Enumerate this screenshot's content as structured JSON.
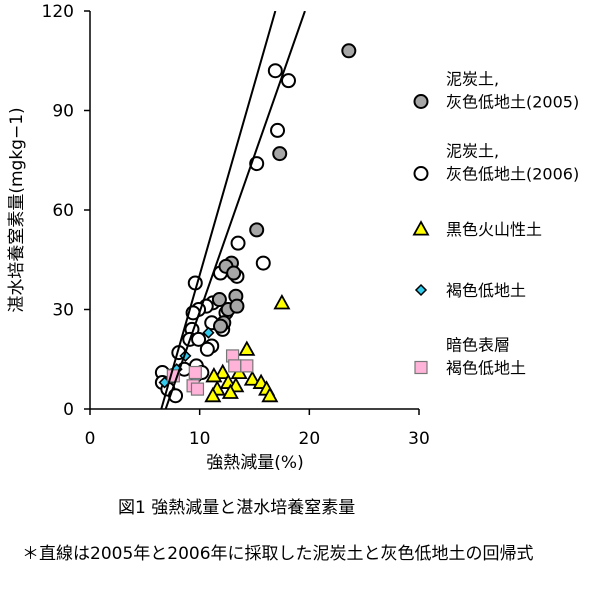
{
  "chart_data": {
    "type": "scatter",
    "xlabel": "強熱減量(%)",
    "ylabel": "湛水培養窒素量(mgkg−1)",
    "xlim": [
      0,
      30
    ],
    "ylim": [
      0,
      120
    ],
    "xticks": [
      "0",
      "10",
      "20",
      "30"
    ],
    "yticks": [
      "0",
      "30",
      "60",
      "90",
      "120"
    ],
    "legend_position": "right",
    "series": [
      {
        "name": "泥炭土,\n灰色低地土(2005)",
        "marker": "circle",
        "fill": "#a6a6a6",
        "points": [
          [
            23.6,
            108
          ],
          [
            17.3,
            77
          ],
          [
            15.2,
            54
          ],
          [
            12.9,
            44
          ],
          [
            12.4,
            43
          ],
          [
            13.1,
            41
          ],
          [
            11.8,
            33
          ],
          [
            13.3,
            34
          ],
          [
            12.6,
            30
          ],
          [
            13.4,
            31
          ],
          [
            12.2,
            26
          ],
          [
            11.9,
            25
          ]
        ]
      },
      {
        "name": "泥炭土,\n灰色低地土(2006)",
        "marker": "circle",
        "fill": "#ffffff",
        "points": [
          [
            16.9,
            102
          ],
          [
            18.1,
            99
          ],
          [
            17.1,
            84
          ],
          [
            15.2,
            74
          ],
          [
            13.5,
            50
          ],
          [
            15.8,
            44
          ],
          [
            11.9,
            41
          ],
          [
            13.4,
            40
          ],
          [
            9.6,
            38
          ],
          [
            11.2,
            32
          ],
          [
            10.6,
            31
          ],
          [
            9.9,
            30
          ],
          [
            9.4,
            29
          ],
          [
            12.4,
            29
          ],
          [
            11.1,
            26
          ],
          [
            9.3,
            24
          ],
          [
            12.1,
            24
          ],
          [
            9.1,
            21
          ],
          [
            9.9,
            21
          ],
          [
            11.1,
            19
          ],
          [
            10.7,
            18
          ],
          [
            8.1,
            17
          ],
          [
            9.7,
            13
          ],
          [
            8.6,
            12
          ],
          [
            10.2,
            11
          ],
          [
            7.5,
            10
          ],
          [
            6.6,
            11
          ],
          [
            6.6,
            8
          ],
          [
            7.1,
            6
          ],
          [
            7.8,
            4
          ]
        ]
      },
      {
        "name": "黒色火山性土",
        "marker": "triangle",
        "fill": "#ffff00",
        "points": [
          [
            17.5,
            32
          ],
          [
            14.3,
            18
          ],
          [
            12.1,
            11
          ],
          [
            13.6,
            11
          ],
          [
            11.3,
            10
          ],
          [
            14.8,
            9
          ],
          [
            12.6,
            8
          ],
          [
            13.3,
            7
          ],
          [
            11.6,
            6
          ],
          [
            15.6,
            8
          ],
          [
            16.1,
            6
          ],
          [
            12.8,
            5
          ],
          [
            11.2,
            4
          ],
          [
            16.4,
            4
          ]
        ]
      },
      {
        "name": "褐色低地土",
        "marker": "diamond",
        "fill": "#33ccee",
        "points": [
          [
            10.8,
            23
          ],
          [
            8.7,
            16
          ],
          [
            7.9,
            12
          ],
          [
            6.8,
            8
          ],
          [
            9.7,
            9
          ]
        ]
      },
      {
        "name": "暗色表層\n褐色低地土",
        "marker": "square",
        "fill": "#ffb3d9",
        "points": [
          [
            13.0,
            16
          ],
          [
            13.2,
            13
          ],
          [
            14.3,
            13
          ],
          [
            9.6,
            11
          ],
          [
            7.6,
            10
          ],
          [
            9.4,
            7
          ],
          [
            9.8,
            6
          ]
        ]
      }
    ],
    "regression_lines": [
      {
        "from": [
          6.5,
          0
        ],
        "to": [
          16.9,
          120
        ]
      },
      {
        "from": [
          6.9,
          0
        ],
        "to": [
          19.6,
          120
        ]
      }
    ]
  },
  "caption": "図1  強熱減量と湛水培養窒素量",
  "note": "＊直線は2005年と2006年に採取した泥炭土と灰色低地土の回帰式"
}
